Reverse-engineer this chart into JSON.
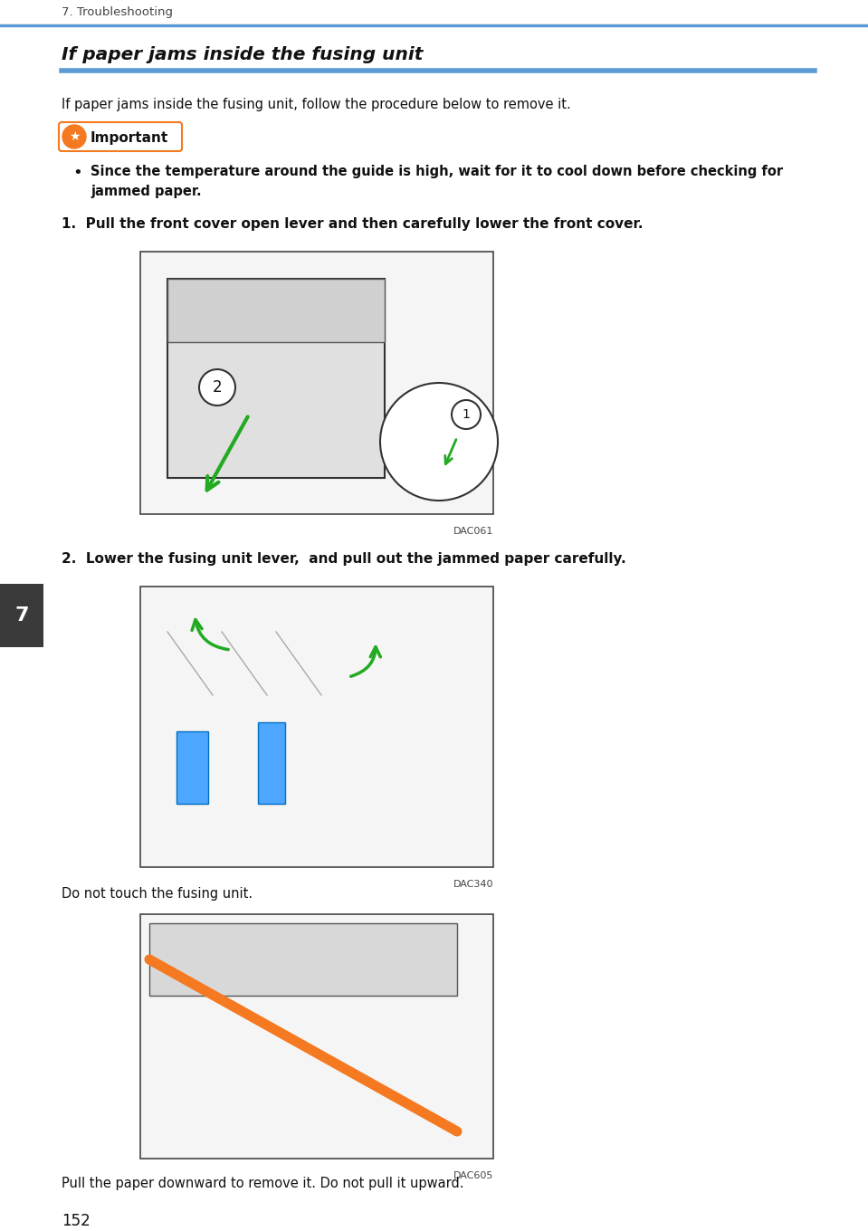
{
  "page_bg": "#ffffff",
  "header_text": "7. Troubleshooting",
  "header_line_color": "#5b9bd5",
  "section_title": "If paper jams inside the fusing unit",
  "section_title_line_color": "#5b9bd5",
  "intro_text": "If paper jams inside the fusing unit, follow the procedure below to remove it.",
  "important_label": "Important",
  "important_bg": "#f47920",
  "bullet_line1": "Since the temperature around the guide is high, wait for it to cool down before checking for",
  "bullet_line2": "jammed paper.",
  "step1_text": "1.  Pull the front cover open lever and then carefully lower the front cover.",
  "step1_image_label": "DAC061",
  "step2_text": "2.  Lower the fusing unit lever,  and pull out the jammed paper carefully.",
  "step2_image_label": "DAC340",
  "note1_text": "Do not touch the fusing unit.",
  "step3_image_label": "DAC605",
  "note2_text": "Pull the paper downward to remove it. Do not pull it upward.",
  "page_number": "152",
  "tab_color": "#3a3a3a",
  "tab_text": "7",
  "tab_text_color": "#ffffff",
  "img_border_color": "#444444",
  "img_fill_color": "#f5f5f5"
}
